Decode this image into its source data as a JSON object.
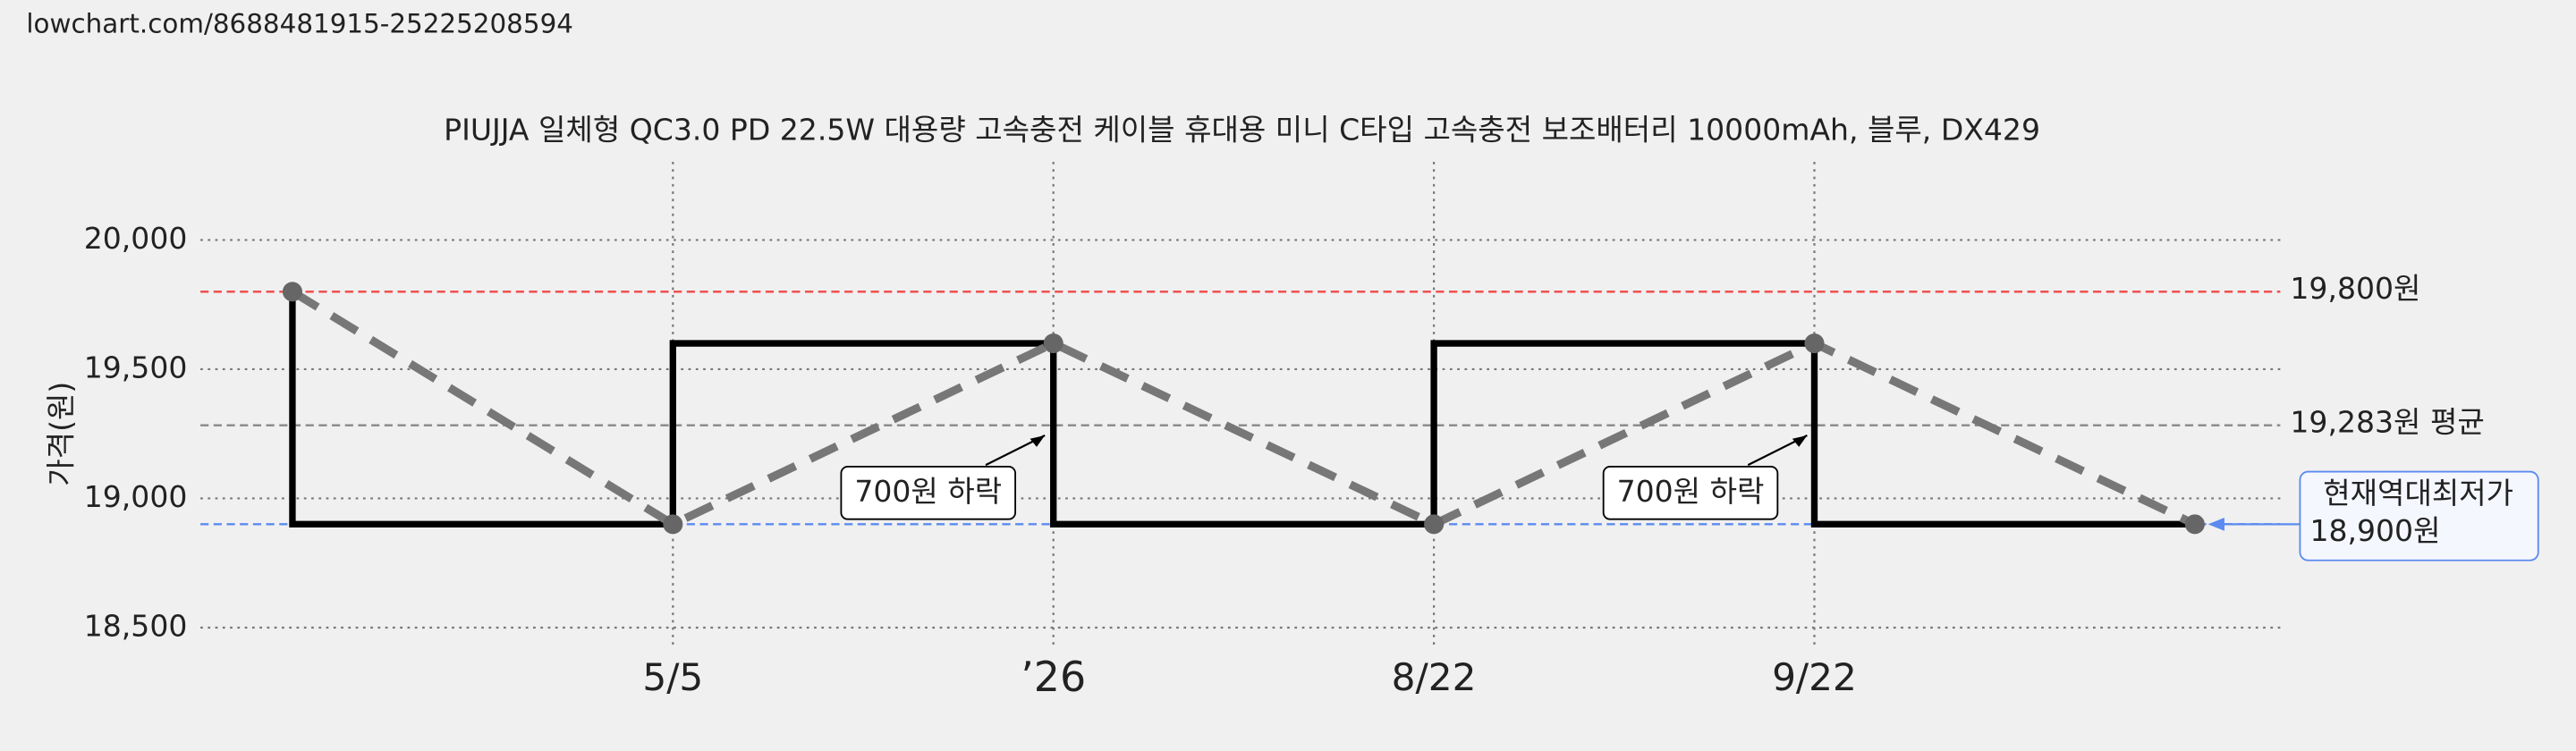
{
  "url": "lowchart.com/8688481915-25225208594",
  "chart_data": {
    "type": "line",
    "title": "PIUJJA 일체형 QC3.0 PD 22.5W 대용량 고속충전 케이블 휴대용 미니 C타입 고속충전 보조배터리 10000mAh, 블루, DX429",
    "y_label": "가격(원)",
    "categories": [
      null,
      "5/5",
      "’26",
      "8/22",
      "9/22",
      null
    ],
    "values": [
      19800,
      18900,
      19600,
      18900,
      19600,
      18900
    ],
    "step_color": "#000000",
    "line_color": "#777777",
    "ylim": [
      18420,
      20080
    ],
    "yticks": [
      {
        "value": 18500,
        "label": "18,500"
      },
      {
        "value": 19000,
        "label": "19,000"
      },
      {
        "value": 19500,
        "label": "19,500"
      },
      {
        "value": 20000,
        "label": "20,000"
      }
    ],
    "grid": true,
    "reference_lines": [
      {
        "value": 19800,
        "label": "19,800원",
        "color": "#f05050"
      },
      {
        "value": 19283,
        "label": "19,283원 평균",
        "color": "#888888"
      },
      {
        "value": 18900,
        "title": "현재역대최저가",
        "label": "18,900원",
        "color": "#5b8af0"
      }
    ],
    "annotations": [
      "700원 하락",
      "700원 하락"
    ]
  }
}
